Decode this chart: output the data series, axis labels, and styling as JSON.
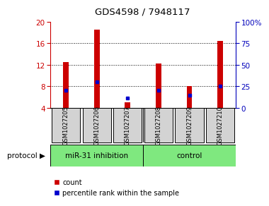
{
  "title": "GDS4598 / 7948117",
  "samples": [
    "GSM1027205",
    "GSM1027206",
    "GSM1027207",
    "GSM1027208",
    "GSM1027209",
    "GSM1027210"
  ],
  "red_values": [
    12.5,
    18.6,
    5.0,
    12.3,
    8.1,
    16.5
  ],
  "blue_values": [
    7.2,
    8.8,
    5.8,
    7.3,
    6.4,
    8.1
  ],
  "ylim_left": [
    4,
    20
  ],
  "ylim_right": [
    0,
    100
  ],
  "yticks_left": [
    4,
    8,
    12,
    16,
    20
  ],
  "yticks_right": [
    0,
    25,
    50,
    75,
    100
  ],
  "groups": [
    {
      "label": "miR-31 inhibition",
      "color": "#7FE87F"
    },
    {
      "label": "control",
      "color": "#7FE87F"
    }
  ],
  "bar_color": "#CC0000",
  "blue_color": "#0000CC",
  "bar_width": 0.18,
  "label_color_left": "#CC0000",
  "label_color_right": "#0000BB",
  "grid_color": "#000000",
  "sample_box_color": "#D3D3D3",
  "protocol_label": "protocol",
  "legend_count": "count",
  "legend_percentile": "percentile rank within the sample"
}
